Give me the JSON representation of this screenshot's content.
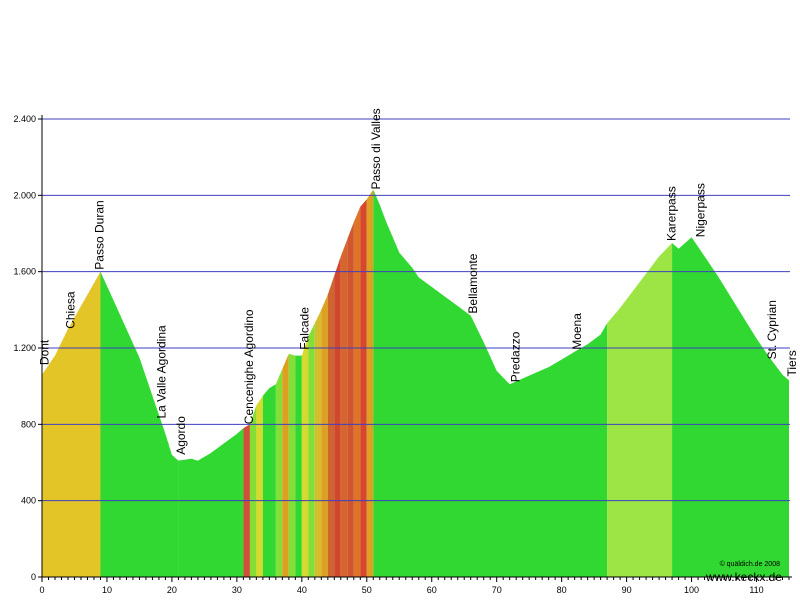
{
  "chart_data": {
    "type": "area",
    "title": "",
    "xlabel": "",
    "ylabel": "",
    "xlim": [
      0,
      115
    ],
    "ylim": [
      0,
      2400
    ],
    "x_ticks": [
      0,
      10,
      20,
      30,
      40,
      50,
      60,
      70,
      80,
      90,
      100,
      110
    ],
    "x_tick_labels": [
      "0",
      "10",
      "20",
      "30",
      "40",
      "50",
      "60",
      "70",
      "80",
      "90",
      "100",
      "110"
    ],
    "y_ticks": [
      0,
      400,
      800,
      1200,
      1600,
      2000,
      2400
    ],
    "y_tick_labels": [
      "0",
      "400",
      "800",
      "1.200",
      "1.600",
      "2.000",
      "2.400"
    ],
    "grid": "horizontal",
    "profile": {
      "x": [
        0,
        2,
        4,
        6,
        8,
        9,
        11,
        13,
        15,
        17,
        19,
        20,
        21,
        23,
        24,
        26,
        28,
        30,
        31,
        32,
        33,
        34,
        35,
        36,
        37,
        38,
        39,
        40,
        41,
        42,
        43,
        44,
        45,
        46,
        47,
        48,
        49,
        50,
        51,
        52,
        53,
        54,
        55,
        56,
        57,
        58,
        60,
        62,
        64,
        66,
        68,
        70,
        72,
        74,
        76,
        78,
        80,
        82,
        84,
        86,
        87,
        89,
        91,
        93,
        95,
        97,
        98,
        100,
        102,
        104,
        106,
        108,
        110,
        112,
        114,
        115
      ],
      "y": [
        1060,
        1160,
        1300,
        1420,
        1540,
        1600,
        1450,
        1300,
        1150,
        950,
        750,
        640,
        610,
        620,
        610,
        650,
        700,
        750,
        780,
        800,
        900,
        950,
        990,
        1010,
        1090,
        1170,
        1160,
        1160,
        1260,
        1330,
        1400,
        1480,
        1580,
        1680,
        1770,
        1860,
        1940,
        1980,
        2030,
        1950,
        1860,
        1780,
        1700,
        1660,
        1620,
        1570,
        1520,
        1470,
        1420,
        1370,
        1230,
        1080,
        1010,
        1040,
        1070,
        1100,
        1140,
        1180,
        1220,
        1270,
        1330,
        1410,
        1500,
        1590,
        1680,
        1750,
        1720,
        1780,
        1680,
        1580,
        1470,
        1360,
        1250,
        1150,
        1060,
        1030
      ],
      "band_colors": [
        {
          "x0": 0,
          "x1": 9,
          "color": "#f6c928"
        },
        {
          "x0": 9,
          "x1": 21,
          "color": "#33dd33"
        },
        {
          "x0": 21,
          "x1": 31,
          "color": "#33dd33"
        },
        {
          "x0": 31,
          "x1": 32,
          "color": "#e0483a"
        },
        {
          "x0": 32,
          "x1": 33,
          "color": "#8ee53a"
        },
        {
          "x0": 33,
          "x1": 34,
          "color": "#e8e030"
        },
        {
          "x0": 34,
          "x1": 36,
          "color": "#33dd33"
        },
        {
          "x0": 36,
          "x1": 37,
          "color": "#8ee53a"
        },
        {
          "x0": 37,
          "x1": 38,
          "color": "#f0a020"
        },
        {
          "x0": 38,
          "x1": 39,
          "color": "#8ee53a"
        },
        {
          "x0": 39,
          "x1": 40,
          "color": "#33dd33"
        },
        {
          "x0": 40,
          "x1": 41,
          "color": "#e8e030"
        },
        {
          "x0": 41,
          "x1": 42,
          "color": "#8ee53a"
        },
        {
          "x0": 42,
          "x1": 43,
          "color": "#e8c030"
        },
        {
          "x0": 43,
          "x1": 44,
          "color": "#f0a020"
        },
        {
          "x0": 44,
          "x1": 45,
          "color": "#e06030"
        },
        {
          "x0": 45,
          "x1": 46,
          "color": "#e04030"
        },
        {
          "x0": 46,
          "x1": 47,
          "color": "#e86030"
        },
        {
          "x0": 47,
          "x1": 48,
          "color": "#e05030"
        },
        {
          "x0": 48,
          "x1": 49,
          "color": "#f07028"
        },
        {
          "x0": 49,
          "x1": 50,
          "color": "#e84030"
        },
        {
          "x0": 50,
          "x1": 51,
          "color": "#f0a020"
        },
        {
          "x0": 51,
          "x1": 87,
          "color": "#33dd33"
        },
        {
          "x0": 87,
          "x1": 97,
          "color": "#a8ec48"
        },
        {
          "x0": 97,
          "x1": 115,
          "color": "#33dd33"
        }
      ]
    },
    "annotations": [
      {
        "label": "Dont",
        "x": 1,
        "elev": 1100
      },
      {
        "label": "Chiesa",
        "x": 5,
        "elev": 1290
      },
      {
        "label": "Passo Duran",
        "x": 9.5,
        "elev": 1600
      },
      {
        "label": "La Valle Agordina",
        "x": 19,
        "elev": 820
      },
      {
        "label": "Agordo",
        "x": 22,
        "elev": 630
      },
      {
        "label": "Cencenighe Agordino",
        "x": 32.5,
        "elev": 790
      },
      {
        "label": "Falcade",
        "x": 41,
        "elev": 1180
      },
      {
        "label": "Passo di Valles",
        "x": 52,
        "elev": 2020
      },
      {
        "label": "Bellamonte",
        "x": 67,
        "elev": 1370
      },
      {
        "label": "Predazzo",
        "x": 73.5,
        "elev": 1010
      },
      {
        "label": "Moena",
        "x": 83,
        "elev": 1180
      },
      {
        "label": "Karerpass",
        "x": 97.5,
        "elev": 1750
      },
      {
        "label": "Nigerpass",
        "x": 102,
        "elev": 1770
      },
      {
        "label": "St. Cyprian",
        "x": 113,
        "elev": 1130
      },
      {
        "label": "Tiers",
        "x": 116.5,
        "elev": 1040
      }
    ],
    "colors": {
      "grid": "#3f3fbf",
      "axis": "#000000",
      "stripe": "#1e9e1e"
    }
  },
  "footer": {
    "copyright": "© quäldich.de 2008",
    "website": "www.keckx.de"
  }
}
